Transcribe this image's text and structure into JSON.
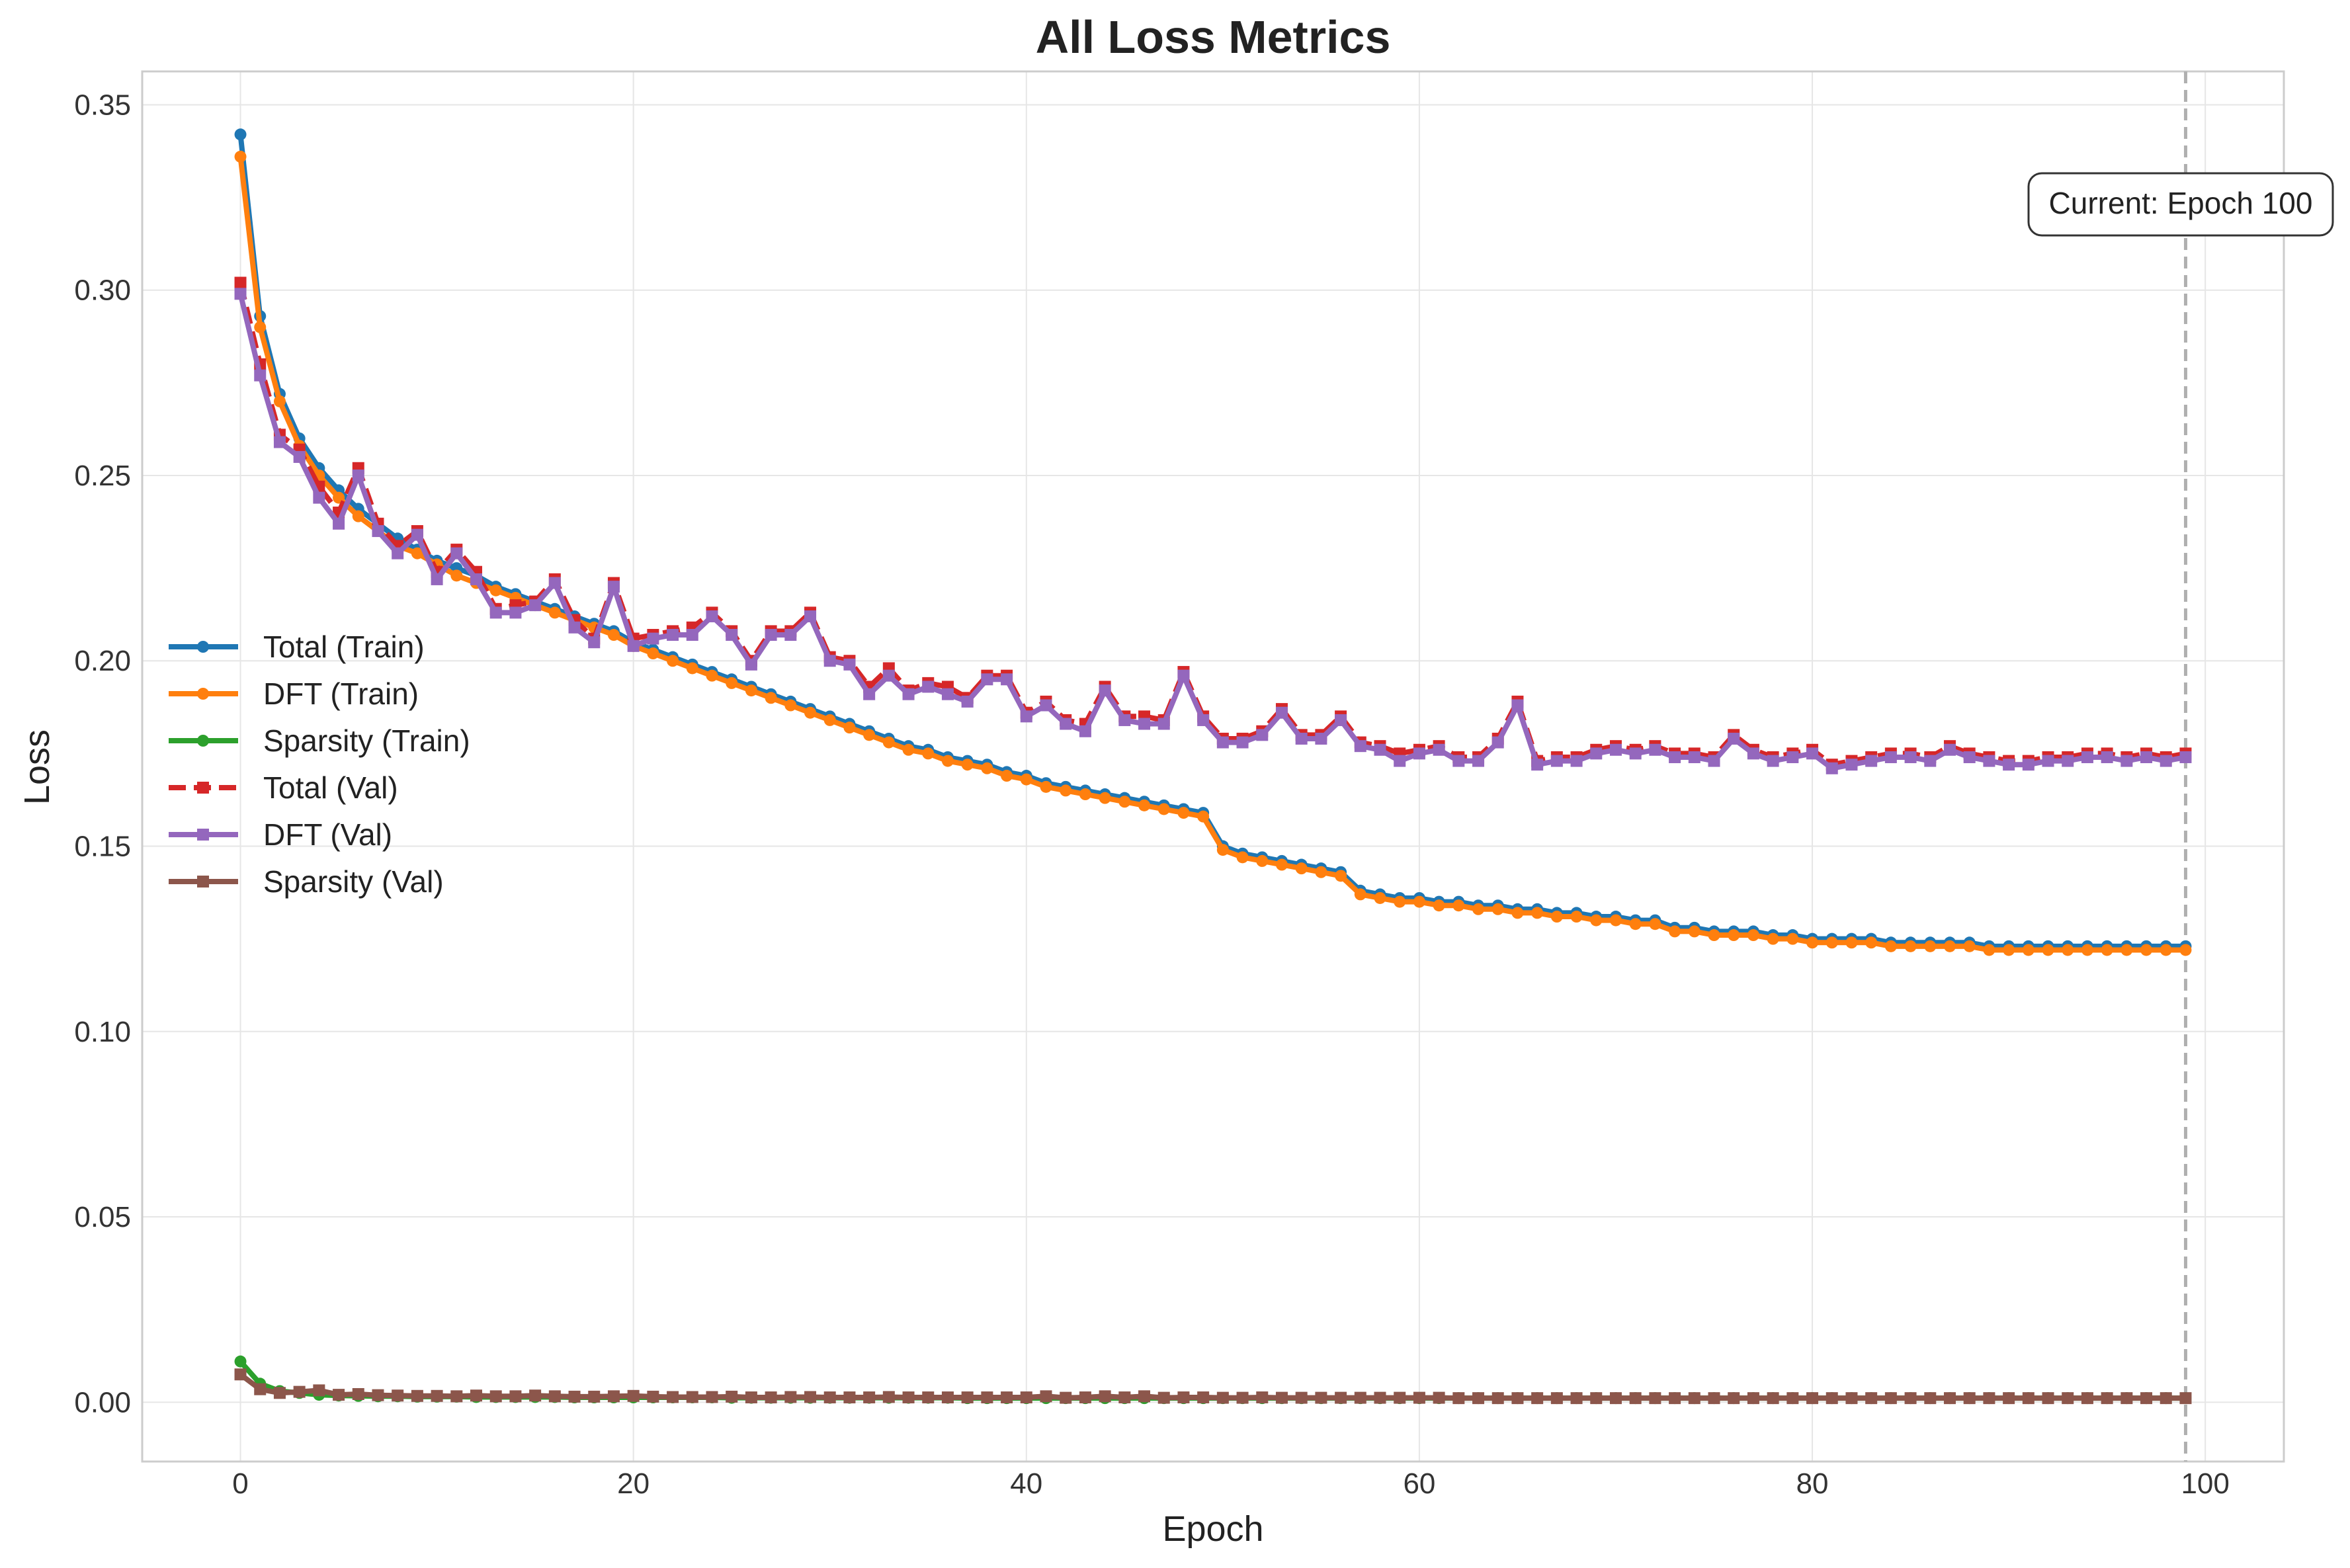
{
  "chart_data": {
    "type": "line",
    "title": "All Loss Metrics",
    "xlabel": "Epoch",
    "ylabel": "Loss",
    "xlim": [
      -5,
      104
    ],
    "ylim": [
      -0.016,
      0.359
    ],
    "xticks": [
      0,
      20,
      40,
      60,
      80,
      100
    ],
    "yticks": [
      0.0,
      0.05,
      0.1,
      0.15,
      0.2,
      0.25,
      0.3,
      0.35
    ],
    "xtick_labels": [
      "0",
      "20",
      "40",
      "60",
      "80",
      "100"
    ],
    "ytick_labels": [
      "0.00",
      "0.05",
      "0.10",
      "0.15",
      "0.20",
      "0.25",
      "0.30",
      "0.35"
    ],
    "grid": true,
    "legend_position": "center-left",
    "annotation": {
      "text": "Current: Epoch 100",
      "epoch": 99,
      "line_color": "#b0b0b0"
    },
    "series": [
      {
        "name": "Total (Train)",
        "color": "#1f77b4",
        "marker": "circle",
        "dash": "solid",
        "values": [
          0.342,
          0.293,
          0.272,
          0.26,
          0.252,
          0.246,
          0.241,
          0.237,
          0.233,
          0.23,
          0.227,
          0.225,
          0.223,
          0.22,
          0.218,
          0.216,
          0.214,
          0.212,
          0.21,
          0.208,
          0.205,
          0.203,
          0.201,
          0.199,
          0.197,
          0.195,
          0.193,
          0.191,
          0.189,
          0.187,
          0.185,
          0.183,
          0.181,
          0.179,
          0.177,
          0.176,
          0.174,
          0.173,
          0.172,
          0.17,
          0.169,
          0.167,
          0.166,
          0.165,
          0.164,
          0.163,
          0.162,
          0.161,
          0.16,
          0.159,
          0.15,
          0.148,
          0.147,
          0.146,
          0.145,
          0.144,
          0.143,
          0.138,
          0.137,
          0.136,
          0.136,
          0.135,
          0.135,
          0.134,
          0.134,
          0.133,
          0.133,
          0.132,
          0.132,
          0.131,
          0.131,
          0.13,
          0.13,
          0.128,
          0.128,
          0.127,
          0.127,
          0.127,
          0.126,
          0.126,
          0.125,
          0.125,
          0.125,
          0.125,
          0.124,
          0.124,
          0.124,
          0.124,
          0.124,
          0.123,
          0.123,
          0.123,
          0.123,
          0.123,
          0.123,
          0.123,
          0.123,
          0.123,
          0.123,
          0.123
        ]
      },
      {
        "name": "DFT (Train)",
        "color": "#ff7f0e",
        "marker": "circle",
        "dash": "solid",
        "values": [
          0.336,
          0.29,
          0.27,
          0.258,
          0.25,
          0.244,
          0.239,
          0.235,
          0.231,
          0.229,
          0.226,
          0.223,
          0.221,
          0.219,
          0.217,
          0.215,
          0.213,
          0.211,
          0.209,
          0.207,
          0.204,
          0.202,
          0.2,
          0.198,
          0.196,
          0.194,
          0.192,
          0.19,
          0.188,
          0.186,
          0.184,
          0.182,
          0.18,
          0.178,
          0.176,
          0.175,
          0.173,
          0.172,
          0.171,
          0.169,
          0.168,
          0.166,
          0.165,
          0.164,
          0.163,
          0.162,
          0.161,
          0.16,
          0.159,
          0.158,
          0.149,
          0.147,
          0.146,
          0.145,
          0.144,
          0.143,
          0.142,
          0.137,
          0.136,
          0.135,
          0.135,
          0.134,
          0.134,
          0.133,
          0.133,
          0.132,
          0.132,
          0.131,
          0.131,
          0.13,
          0.13,
          0.129,
          0.129,
          0.127,
          0.127,
          0.126,
          0.126,
          0.126,
          0.125,
          0.125,
          0.124,
          0.124,
          0.124,
          0.124,
          0.123,
          0.123,
          0.123,
          0.123,
          0.123,
          0.122,
          0.122,
          0.122,
          0.122,
          0.122,
          0.122,
          0.122,
          0.122,
          0.122,
          0.122,
          0.122
        ]
      },
      {
        "name": "Sparsity (Train)",
        "color": "#2ca02c",
        "marker": "circle",
        "dash": "solid",
        "values": [
          0.011,
          0.005,
          0.003,
          0.0025,
          0.002,
          0.0018,
          0.0017,
          0.0016,
          0.0016,
          0.0015,
          0.0015,
          0.0015,
          0.0014,
          0.0014,
          0.0014,
          0.0014,
          0.0014,
          0.0013,
          0.0013,
          0.0013,
          0.0013,
          0.0013,
          0.0013,
          0.0013,
          0.0013,
          0.0012,
          0.0012,
          0.0012,
          0.0012,
          0.0012,
          0.0012,
          0.0012,
          0.0012,
          0.0012,
          0.0012,
          0.0012,
          0.0012,
          0.0011,
          0.0011,
          0.0011,
          0.0011,
          0.0011,
          0.0011,
          0.0011,
          0.0011,
          0.0011,
          0.0011,
          0.0011,
          0.0011,
          0.0011,
          0.0011,
          0.0011,
          0.0011,
          0.0011,
          0.0011,
          0.0011,
          0.0011,
          0.0011,
          0.0011,
          0.0011,
          0.0011,
          0.0011,
          0.0011,
          0.0011,
          0.0011,
          0.0011,
          0.0011,
          0.0011,
          0.0011,
          0.0011,
          0.0011,
          0.0011,
          0.0011,
          0.0011,
          0.0011,
          0.0011,
          0.0011,
          0.0011,
          0.0011,
          0.0011,
          0.0011,
          0.0011,
          0.0011,
          0.0011,
          0.0011,
          0.0011,
          0.0011,
          0.0011,
          0.0011,
          0.0011,
          0.0011,
          0.0011,
          0.0011,
          0.0011,
          0.0011,
          0.0011,
          0.0011,
          0.0011,
          0.0011,
          0.0011
        ]
      },
      {
        "name": "Total (Val)",
        "color": "#d62728",
        "marker": "square",
        "dash": "dashed",
        "values": [
          0.302,
          0.28,
          0.261,
          0.257,
          0.247,
          0.24,
          0.252,
          0.237,
          0.231,
          0.235,
          0.224,
          0.23,
          0.224,
          0.214,
          0.215,
          0.216,
          0.222,
          0.211,
          0.206,
          0.221,
          0.206,
          0.207,
          0.208,
          0.209,
          0.213,
          0.208,
          0.2,
          0.208,
          0.208,
          0.213,
          0.201,
          0.2,
          0.193,
          0.198,
          0.192,
          0.194,
          0.193,
          0.19,
          0.196,
          0.196,
          0.186,
          0.189,
          0.184,
          0.183,
          0.193,
          0.185,
          0.185,
          0.184,
          0.197,
          0.185,
          0.179,
          0.179,
          0.181,
          0.187,
          0.18,
          0.18,
          0.185,
          0.178,
          0.177,
          0.175,
          0.176,
          0.177,
          0.174,
          0.174,
          0.179,
          0.189,
          0.173,
          0.174,
          0.174,
          0.176,
          0.177,
          0.176,
          0.177,
          0.175,
          0.175,
          0.174,
          0.18,
          0.176,
          0.174,
          0.175,
          0.176,
          0.172,
          0.173,
          0.174,
          0.175,
          0.175,
          0.174,
          0.177,
          0.175,
          0.174,
          0.173,
          0.173,
          0.174,
          0.174,
          0.175,
          0.175,
          0.174,
          0.175,
          0.174,
          0.175
        ]
      },
      {
        "name": "DFT (Val)",
        "color": "#9467bd",
        "marker": "square",
        "dash": "solid",
        "values": [
          0.299,
          0.277,
          0.259,
          0.255,
          0.244,
          0.237,
          0.25,
          0.235,
          0.229,
          0.234,
          0.222,
          0.229,
          0.222,
          0.213,
          0.213,
          0.215,
          0.221,
          0.209,
          0.205,
          0.22,
          0.204,
          0.206,
          0.207,
          0.207,
          0.212,
          0.207,
          0.199,
          0.207,
          0.207,
          0.212,
          0.2,
          0.199,
          0.191,
          0.196,
          0.191,
          0.193,
          0.191,
          0.189,
          0.195,
          0.195,
          0.185,
          0.188,
          0.183,
          0.181,
          0.192,
          0.184,
          0.183,
          0.183,
          0.196,
          0.184,
          0.178,
          0.178,
          0.18,
          0.186,
          0.179,
          0.179,
          0.184,
          0.177,
          0.176,
          0.173,
          0.175,
          0.176,
          0.173,
          0.173,
          0.178,
          0.188,
          0.172,
          0.173,
          0.173,
          0.175,
          0.176,
          0.175,
          0.176,
          0.174,
          0.174,
          0.173,
          0.179,
          0.175,
          0.173,
          0.174,
          0.175,
          0.171,
          0.172,
          0.173,
          0.174,
          0.174,
          0.173,
          0.176,
          0.174,
          0.173,
          0.172,
          0.172,
          0.173,
          0.173,
          0.174,
          0.174,
          0.173,
          0.174,
          0.173,
          0.174
        ]
      },
      {
        "name": "Sparsity (Val)",
        "color": "#8c564b",
        "marker": "square",
        "dash": "solid",
        "values": [
          0.0075,
          0.0035,
          0.0025,
          0.0028,
          0.0032,
          0.002,
          0.0022,
          0.0019,
          0.0018,
          0.0017,
          0.0017,
          0.0016,
          0.0018,
          0.0016,
          0.0016,
          0.0018,
          0.0016,
          0.0015,
          0.0015,
          0.0016,
          0.0017,
          0.0015,
          0.0014,
          0.0014,
          0.0014,
          0.0015,
          0.0013,
          0.0013,
          0.0014,
          0.0014,
          0.0013,
          0.0013,
          0.0013,
          0.0014,
          0.0013,
          0.0013,
          0.0013,
          0.0013,
          0.0013,
          0.0013,
          0.0013,
          0.0016,
          0.0012,
          0.0013,
          0.0016,
          0.0013,
          0.0016,
          0.0012,
          0.0013,
          0.0013,
          0.0012,
          0.0012,
          0.0013,
          0.0012,
          0.0012,
          0.0012,
          0.0012,
          0.0012,
          0.0012,
          0.0012,
          0.0012,
          0.0012,
          0.0011,
          0.0011,
          0.0011,
          0.0011,
          0.0011,
          0.0011,
          0.0011,
          0.0011,
          0.0011,
          0.0011,
          0.0011,
          0.0011,
          0.0011,
          0.0011,
          0.0011,
          0.0011,
          0.0011,
          0.0011,
          0.0011,
          0.0011,
          0.0011,
          0.0011,
          0.0011,
          0.0011,
          0.0011,
          0.0011,
          0.0011,
          0.0011,
          0.0011,
          0.0011,
          0.0011,
          0.0011,
          0.0011,
          0.0011,
          0.0011,
          0.0011,
          0.0011,
          0.0011
        ]
      }
    ]
  }
}
